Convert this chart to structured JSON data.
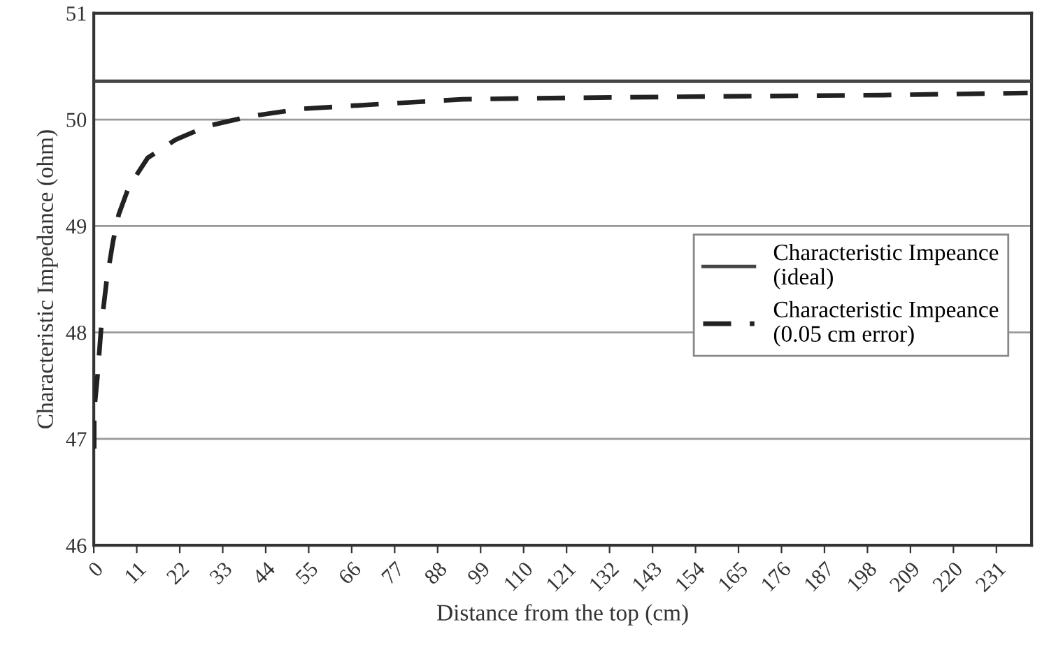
{
  "chart_data": {
    "type": "line",
    "xlabel": "Distance from the top (cm)",
    "ylabel": "Characteristic Impedance (ohm)",
    "xlim": [
      0,
      240
    ],
    "xticks": [
      0,
      11,
      22,
      33,
      44,
      55,
      66,
      77,
      88,
      99,
      110,
      121,
      132,
      143,
      154,
      165,
      176,
      187,
      198,
      209,
      220,
      231
    ],
    "ylim": [
      46,
      51
    ],
    "yticks": [
      46,
      47,
      48,
      49,
      50,
      51
    ],
    "grid": "y",
    "legend": "right",
    "series": [
      {
        "name": "Characteristic Impeance\n(ideal)",
        "color": "#444444",
        "line_style": "solid",
        "x": [
          0,
          240
        ],
        "values": [
          50.36,
          50.36
        ]
      },
      {
        "name": "Characteristic Impeance\n(0.05 cm error)",
        "color": "#222222",
        "line_style": "dashed",
        "x": [
          0.1,
          0.1,
          1.0,
          1.9,
          3.3,
          4.9,
          6.4,
          9.0,
          13.8,
          20.9,
          29.2,
          39.9,
          52.9,
          70.7,
          94.3,
          111,
          166.8,
          202,
          239
        ],
        "values": [
          46.91,
          47.26,
          47.61,
          48.05,
          48.49,
          48.85,
          49.11,
          49.37,
          49.64,
          49.81,
          49.94,
          50.03,
          50.1,
          50.14,
          50.19,
          50.2,
          50.22,
          50.23,
          50.25
        ]
      }
    ]
  }
}
